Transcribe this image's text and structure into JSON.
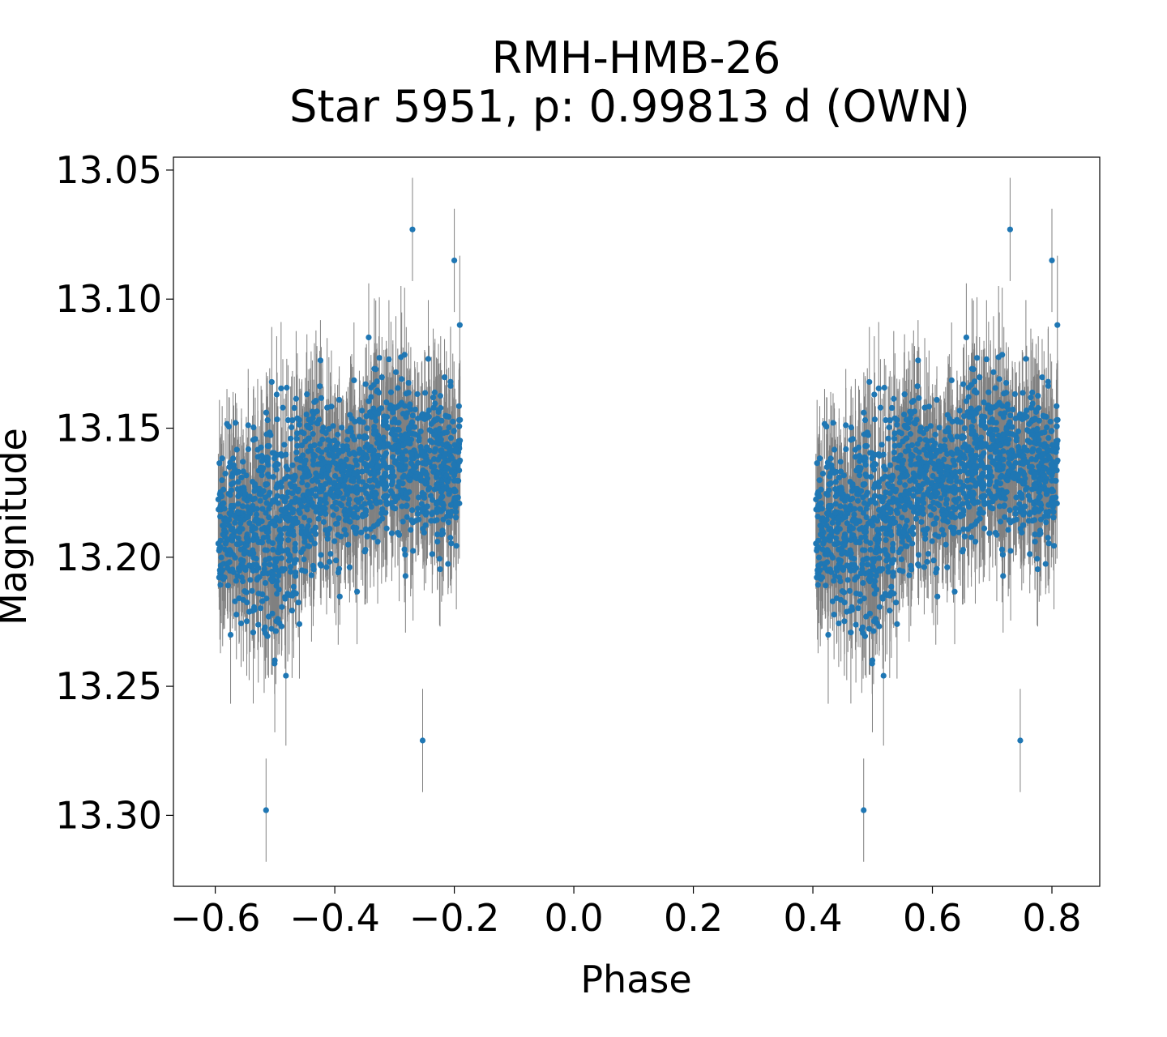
{
  "chart_data": {
    "type": "scatter",
    "title": "RMH-HMB-26",
    "subtitle": "Star 5951, p: 0.99813 d (OWN)",
    "xlabel": "Phase",
    "ylabel": "Magnitude",
    "xlim": [
      -0.67,
      0.88
    ],
    "ylim": [
      13.3275,
      13.045
    ],
    "y_inverted": true,
    "grid": false,
    "x_ticks": [
      -0.6,
      -0.4,
      -0.2,
      0.0,
      0.2,
      0.4,
      0.6,
      0.8
    ],
    "x_tick_labels": [
      "−0.6",
      "−0.4",
      "−0.2",
      "0.0",
      "0.2",
      "0.4",
      "0.6",
      "0.8"
    ],
    "y_ticks": [
      13.05,
      13.1,
      13.15,
      13.2,
      13.25,
      13.3
    ],
    "y_tick_labels": [
      "13.05",
      "13.10",
      "13.15",
      "13.20",
      "13.25",
      "13.30"
    ],
    "colors": {
      "points": "#1f77b4",
      "error_bars": "#808080"
    },
    "series": [
      {
        "phase_range": [
          -0.595,
          -0.19
        ],
        "repeated_at_phase_offset": 1.0,
        "profile": [
          {
            "phase": -0.59,
            "mag_center": 13.185,
            "mag_spread": 0.03
          },
          {
            "phase": -0.55,
            "mag_center": 13.19,
            "mag_spread": 0.035
          },
          {
            "phase": -0.5,
            "mag_center": 13.19,
            "mag_spread": 0.04
          },
          {
            "phase": -0.45,
            "mag_center": 13.175,
            "mag_spread": 0.035
          },
          {
            "phase": -0.4,
            "mag_center": 13.17,
            "mag_spread": 0.03
          },
          {
            "phase": -0.35,
            "mag_center": 13.165,
            "mag_spread": 0.03
          },
          {
            "phase": -0.3,
            "mag_center": 13.16,
            "mag_spread": 0.03
          },
          {
            "phase": -0.25,
            "mag_center": 13.165,
            "mag_spread": 0.03
          },
          {
            "phase": -0.2,
            "mag_center": 13.165,
            "mag_spread": 0.03
          }
        ],
        "highlighted_points": [
          {
            "phase": -0.515,
            "mag": 13.298
          },
          {
            "phase": -0.27,
            "mag": 13.073
          },
          {
            "phase": -0.2,
            "mag": 13.085
          },
          {
            "phase": -0.253,
            "mag": 13.271
          }
        ]
      }
    ]
  }
}
